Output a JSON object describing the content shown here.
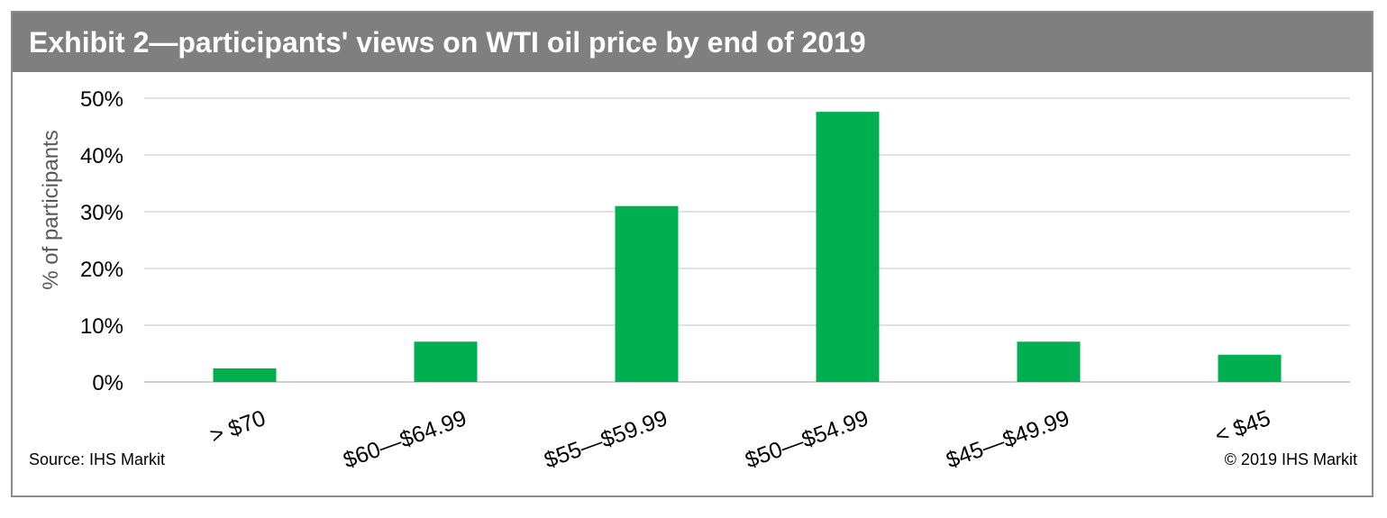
{
  "header": {
    "title": "Exhibit 2—participants' views on WTI oil price by end of 2019"
  },
  "footer": {
    "source": "Source: IHS Markit",
    "copyright": "© 2019 IHS Markit"
  },
  "colors": {
    "bar": "#00b050",
    "grid": "#d9d9d9",
    "title_bar": "#7f7f7f"
  },
  "chart_data": {
    "type": "bar",
    "title": "Exhibit 2—participants' views on WTI oil price by end of 2019",
    "xlabel": "",
    "ylabel": "% of participants",
    "categories": [
      "> $70",
      "$60—$64.99",
      "$55—$59.99",
      "$50—$54.99",
      "$45—$49.99",
      "< $45"
    ],
    "values": [
      2.4,
      7.1,
      31.0,
      47.6,
      7.1,
      4.8
    ],
    "ylim": [
      0,
      50
    ],
    "yticks": [
      0,
      10,
      20,
      30,
      40,
      50
    ],
    "ytick_labels": [
      "0%",
      "10%",
      "20%",
      "30%",
      "40%",
      "50%"
    ],
    "grid": true,
    "legend": "none"
  }
}
